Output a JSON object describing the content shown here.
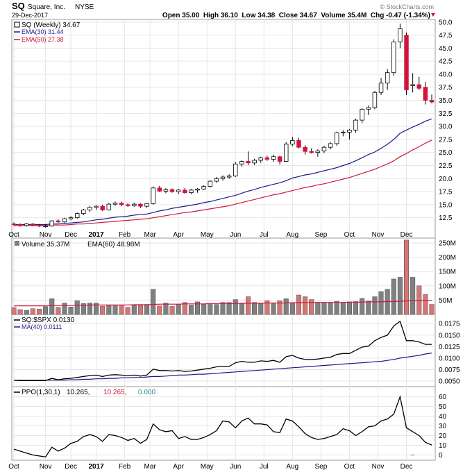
{
  "header": {
    "symbol": "SQ",
    "company": "Square, Inc.",
    "exchange": "NYSE",
    "date": "29-Dec-2017",
    "watermark": "© StockCharts.com",
    "ohlc": "Open 35.00  High 36.10  Low 34.38  Close 34.67  Volume 35.4M  Chg -0.47 (-1.34%)"
  },
  "colors": {
    "up": "#ffffff",
    "down": "#d2143c",
    "ema30": "#1a1a8c",
    "ema50": "#d2143c",
    "volume_up": "#808080",
    "volume_down": "#d47676",
    "ppo_zero": "#2a8aa0"
  },
  "chart_data": [
    {
      "type": "candlestick",
      "legend": [
        "SQ (Weekly) 34.67",
        "EMA(30) 31.44",
        "EMA(50) 27.38"
      ],
      "ylim": [
        10,
        50
      ],
      "y_ticks": [
        12.5,
        15.0,
        17.5,
        20.0,
        22.5,
        25.0,
        27.5,
        30.0,
        32.5,
        35.0,
        37.5,
        40.0,
        42.5,
        45.0,
        47.5,
        50.0
      ],
      "x_labels": [
        "Oct",
        "Nov",
        "Dec",
        "2017",
        "Feb",
        "Mar",
        "Apr",
        "May",
        "Jun",
        "Jul",
        "Aug",
        "Sep",
        "Oct",
        "Nov",
        "Dec"
      ],
      "ohlc": [
        [
          11.3,
          11.6,
          11.0,
          11.2
        ],
        [
          11.2,
          11.4,
          10.8,
          11.0
        ],
        [
          11.0,
          11.5,
          10.8,
          11.3
        ],
        [
          11.3,
          11.5,
          10.9,
          11.1
        ],
        [
          11.1,
          11.3,
          10.7,
          10.9
        ],
        [
          10.9,
          11.2,
          10.6,
          10.9
        ],
        [
          10.9,
          12.0,
          10.8,
          11.9
        ],
        [
          11.9,
          12.2,
          11.5,
          11.7
        ],
        [
          11.7,
          12.5,
          11.5,
          12.3
        ],
        [
          12.3,
          12.8,
          12.0,
          12.5
        ],
        [
          12.5,
          13.5,
          12.3,
          13.3
        ],
        [
          13.3,
          14.2,
          13.0,
          14.0
        ],
        [
          14.0,
          14.8,
          13.6,
          14.5
        ],
        [
          14.5,
          14.9,
          14.0,
          14.7
        ],
        [
          14.7,
          15.0,
          13.8,
          14.0
        ],
        [
          14.0,
          15.3,
          13.9,
          15.1
        ],
        [
          15.1,
          15.6,
          14.8,
          15.3
        ],
        [
          15.3,
          15.6,
          14.7,
          15.0
        ],
        [
          15.0,
          15.3,
          14.6,
          14.8
        ],
        [
          14.8,
          15.4,
          14.6,
          15.1
        ],
        [
          15.1,
          15.3,
          14.4,
          14.7
        ],
        [
          14.7,
          15.3,
          14.4,
          15.2
        ],
        [
          15.2,
          18.5,
          15.0,
          18.2
        ],
        [
          18.2,
          18.6,
          17.4,
          17.6
        ],
        [
          17.6,
          18.2,
          17.2,
          17.9
        ],
        [
          17.9,
          18.1,
          17.3,
          17.5
        ],
        [
          17.5,
          18.0,
          17.0,
          17.8
        ],
        [
          17.8,
          18.2,
          17.1,
          17.3
        ],
        [
          17.3,
          18.0,
          17.0,
          17.8
        ],
        [
          17.8,
          18.2,
          17.3,
          18.0
        ],
        [
          18.0,
          18.7,
          17.8,
          18.5
        ],
        [
          18.5,
          19.7,
          18.3,
          19.5
        ],
        [
          19.5,
          20.3,
          19.2,
          20.0
        ],
        [
          20.0,
          20.6,
          19.6,
          20.3
        ],
        [
          20.3,
          20.8,
          20.0,
          20.5
        ],
        [
          20.5,
          23.2,
          20.3,
          22.8
        ],
        [
          22.8,
          23.5,
          22.3,
          23.3
        ],
        [
          23.3,
          25.2,
          22.6,
          23.0
        ],
        [
          23.0,
          23.8,
          22.6,
          23.5
        ],
        [
          23.5,
          24.2,
          23.0,
          24.0
        ],
        [
          24.0,
          24.4,
          23.4,
          23.7
        ],
        [
          23.7,
          24.6,
          23.2,
          24.2
        ],
        [
          24.2,
          24.3,
          22.7,
          23.3
        ],
        [
          23.3,
          27.0,
          23.2,
          26.6
        ],
        [
          26.6,
          28.0,
          26.2,
          27.3
        ],
        [
          27.3,
          27.8,
          25.8,
          26.0
        ],
        [
          26.0,
          26.4,
          24.6,
          25.2
        ],
        [
          25.2,
          25.8,
          24.8,
          25.0
        ],
        [
          25.0,
          25.6,
          24.2,
          25.3
        ],
        [
          25.3,
          26.3,
          24.9,
          26.0
        ],
        [
          26.0,
          27.0,
          25.6,
          26.7
        ],
        [
          26.7,
          29.0,
          26.3,
          28.8
        ],
        [
          28.8,
          29.3,
          28.1,
          28.9
        ],
        [
          28.9,
          29.5,
          27.5,
          29.3
        ],
        [
          29.3,
          31.5,
          28.8,
          31.2
        ],
        [
          31.2,
          33.5,
          30.6,
          33.3
        ],
        [
          33.3,
          34.0,
          32.2,
          33.6
        ],
        [
          33.6,
          36.8,
          33.3,
          36.5
        ],
        [
          36.5,
          39.3,
          36.0,
          38.3
        ],
        [
          38.3,
          41.0,
          37.0,
          40.3
        ],
        [
          40.3,
          46.7,
          39.7,
          46.2
        ],
        [
          46.2,
          49.7,
          45.0,
          48.7
        ],
        [
          47.5,
          48.0,
          36.0,
          37.0
        ],
        [
          37.8,
          40.2,
          36.5,
          38.0
        ],
        [
          38.0,
          39.5,
          37.0,
          37.3
        ],
        [
          37.5,
          38.5,
          34.2,
          35.0
        ],
        [
          35.0,
          36.1,
          34.4,
          34.67
        ]
      ],
      "ema30": [
        11.2,
        11.2,
        11.2,
        11.2,
        11.2,
        11.2,
        11.3,
        11.3,
        11.4,
        11.5,
        11.6,
        11.7,
        11.9,
        12.1,
        12.2,
        12.4,
        12.6,
        12.7,
        12.8,
        13.0,
        13.1,
        13.2,
        13.5,
        13.8,
        14.0,
        14.3,
        14.5,
        14.7,
        14.9,
        15.1,
        15.4,
        15.6,
        15.9,
        16.2,
        16.5,
        16.8,
        17.2,
        17.6,
        17.9,
        18.3,
        18.6,
        18.9,
        19.2,
        19.6,
        20.1,
        20.4,
        20.7,
        20.9,
        21.2,
        21.5,
        21.8,
        22.1,
        22.5,
        22.9,
        23.4,
        24.0,
        24.6,
        25.1,
        25.8,
        26.6,
        27.5,
        28.7,
        29.3,
        29.9,
        30.4,
        31.0,
        31.44
      ],
      "ema50": [
        11.0,
        11.0,
        11.0,
        11.0,
        11.0,
        11.0,
        11.1,
        11.1,
        11.1,
        11.2,
        11.3,
        11.3,
        11.4,
        11.5,
        11.6,
        11.7,
        11.8,
        11.9,
        12.0,
        12.1,
        12.2,
        12.3,
        12.5,
        12.7,
        12.9,
        13.1,
        13.3,
        13.5,
        13.6,
        13.8,
        14.0,
        14.2,
        14.4,
        14.6,
        14.8,
        15.1,
        15.4,
        15.7,
        16.0,
        16.3,
        16.6,
        16.9,
        17.1,
        17.4,
        17.7,
        18.0,
        18.3,
        18.5,
        18.8,
        19.0,
        19.3,
        19.6,
        19.9,
        20.2,
        20.6,
        21.0,
        21.4,
        21.8,
        22.3,
        22.8,
        23.4,
        24.2,
        24.8,
        25.5,
        26.1,
        26.8,
        27.38
      ]
    },
    {
      "type": "bar",
      "legend": [
        "Volume 35.37M",
        "EMA(60) 48.98M"
      ],
      "ylim": [
        0,
        260
      ],
      "y_ticks": [
        50,
        100,
        150,
        200,
        250
      ],
      "y_tick_labels": [
        "50M",
        "100M",
        "150M",
        "200M",
        "250M"
      ],
      "values": [
        24,
        17,
        14,
        20,
        19,
        27,
        55,
        25,
        40,
        26,
        48,
        38,
        40,
        40,
        29,
        33,
        32,
        33,
        25,
        32,
        32,
        35,
        88,
        30,
        40,
        28,
        36,
        42,
        33,
        44,
        36,
        38,
        35,
        42,
        42,
        52,
        40,
        62,
        42,
        40,
        48,
        40,
        48,
        55,
        40,
        68,
        62,
        52,
        40,
        42,
        40,
        46,
        40,
        44,
        45,
        56,
        47,
        62,
        80,
        88,
        124,
        130,
        260,
        130,
        100,
        70,
        35
      ],
      "ema": [
        30,
        30,
        30,
        30,
        30,
        30,
        31,
        31,
        31,
        31,
        32,
        32,
        33,
        33,
        33,
        33,
        33,
        33,
        33,
        34,
        34,
        34,
        35,
        36,
        36,
        36,
        36,
        37,
        37,
        37,
        37,
        38,
        38,
        38,
        38,
        38,
        39,
        39,
        39,
        39,
        40,
        40,
        40,
        40,
        41,
        41,
        41,
        42,
        42,
        42,
        42,
        42,
        42,
        43,
        43,
        43,
        44,
        44,
        44,
        45,
        45,
        46,
        47,
        48,
        49,
        49,
        48.98
      ]
    },
    {
      "type": "line",
      "legend": [
        "SQ:$SPX 0.0130",
        "MA(40) 0.0111"
      ],
      "ylim": [
        0.0045,
        0.0195
      ],
      "y_ticks": [
        0.005,
        0.0075,
        0.01,
        0.0125,
        0.015,
        0.0175
      ],
      "y_tick_labels": [
        "0.0050",
        "0.0075",
        "0.0100",
        "0.0125",
        "0.0150",
        "0.0175"
      ],
      "ratio": [
        0.0052,
        0.0051,
        0.0051,
        0.0051,
        0.0051,
        0.0051,
        0.0056,
        0.0053,
        0.0055,
        0.0056,
        0.0058,
        0.006,
        0.0062,
        0.0063,
        0.006,
        0.0063,
        0.0064,
        0.0063,
        0.0062,
        0.0063,
        0.0061,
        0.0063,
        0.0076,
        0.0073,
        0.0073,
        0.0072,
        0.0073,
        0.0071,
        0.0072,
        0.0074,
        0.0076,
        0.0078,
        0.0081,
        0.0082,
        0.0082,
        0.009,
        0.0093,
        0.0091,
        0.0091,
        0.0094,
        0.0093,
        0.0095,
        0.0091,
        0.0103,
        0.0106,
        0.01,
        0.0097,
        0.0097,
        0.0098,
        0.01,
        0.0102,
        0.0108,
        0.011,
        0.011,
        0.0117,
        0.0124,
        0.0126,
        0.0138,
        0.0145,
        0.015,
        0.017,
        0.018,
        0.0138,
        0.0138,
        0.0135,
        0.013,
        0.013
      ],
      "ma": [
        0.0052,
        0.0052,
        0.0052,
        0.0052,
        0.0052,
        0.0052,
        0.0052,
        0.0052,
        0.0052,
        0.0053,
        0.0053,
        0.0054,
        0.0054,
        0.0055,
        0.0055,
        0.0056,
        0.0056,
        0.0057,
        0.0057,
        0.0058,
        0.0058,
        0.0059,
        0.006,
        0.006,
        0.0061,
        0.0062,
        0.0063,
        0.0063,
        0.0064,
        0.0065,
        0.0065,
        0.0066,
        0.0067,
        0.0068,
        0.0069,
        0.007,
        0.0071,
        0.0072,
        0.0073,
        0.0074,
        0.0075,
        0.0076,
        0.0077,
        0.0078,
        0.0079,
        0.008,
        0.0081,
        0.0082,
        0.0083,
        0.0084,
        0.0085,
        0.0086,
        0.0087,
        0.0088,
        0.0089,
        0.009,
        0.0091,
        0.0092,
        0.0093,
        0.0095,
        0.0097,
        0.01,
        0.0102,
        0.0104,
        0.0106,
        0.0109,
        0.0111
      ]
    },
    {
      "type": "line",
      "legend_label": "PPO(1,30,1)",
      "legend_value": "10.265,",
      "legend_signal": "10.265,",
      "legend_zero": "0.000",
      "ylim": [
        -2,
        68
      ],
      "y_ticks": [
        0,
        10,
        20,
        30,
        40,
        50,
        60
      ],
      "x_labels": [
        "Oct",
        "Nov",
        "Dec",
        "2017",
        "Feb",
        "Mar",
        "Apr",
        "May",
        "Jun",
        "Jul",
        "Aug",
        "Sep",
        "Oct",
        "Nov",
        "Dec"
      ],
      "values": [
        6,
        4,
        2,
        0,
        -1,
        -2,
        8,
        4,
        7,
        12,
        14,
        19,
        21,
        19,
        14,
        21,
        20,
        18,
        15,
        17,
        12,
        16,
        32,
        26,
        24,
        25,
        17,
        19,
        16,
        16,
        18,
        21,
        25,
        35,
        34,
        28,
        35,
        38,
        32,
        32,
        31,
        24,
        23,
        37,
        35,
        29,
        22,
        18,
        16,
        17,
        19,
        21,
        27,
        25,
        20,
        24,
        29,
        30,
        35,
        37,
        42,
        60,
        28,
        24,
        20,
        13,
        10.265
      ]
    }
  ]
}
